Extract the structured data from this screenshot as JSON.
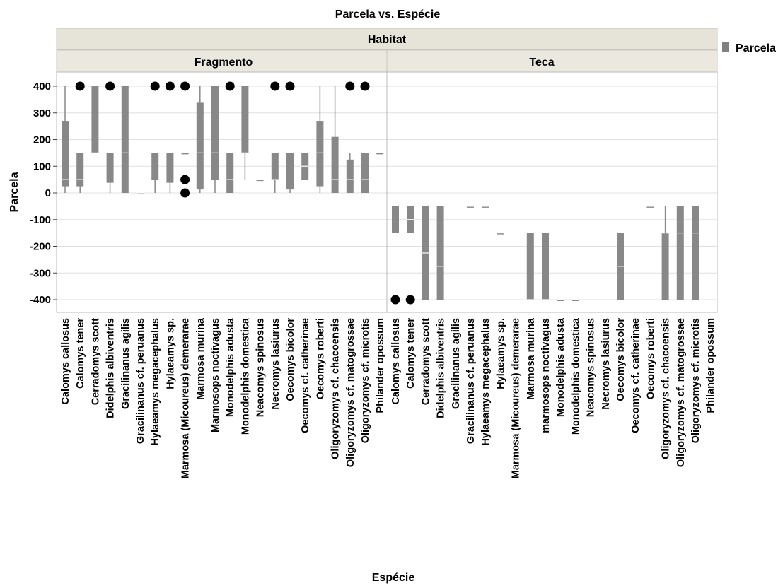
{
  "chart_data": {
    "type": "box",
    "title": "Parcela vs. Espécie",
    "xlabel": "Espécie",
    "ylabel": "Parcela",
    "ylim": [
      -450,
      450
    ],
    "yticks": [
      400,
      300,
      200,
      100,
      0,
      -100,
      -200,
      -300,
      -400
    ],
    "facet_title": "Habitat",
    "legend": {
      "label": "Parcela",
      "position": "top-right",
      "color": "#808080"
    },
    "colors": {
      "box": "#888888",
      "median": "#ffffff",
      "outlier": "#000000",
      "header": "#e6e4d8",
      "grid": "#e0e0e0"
    },
    "panels": [
      {
        "name": "Fragmento",
        "categories": [
          "Calomys callosus",
          "Calomys tener",
          "Cerradomys scott",
          "Didelphis albiventris",
          "Gracilinanus agilis",
          "Gracilinanus cf. peruanus",
          "Hylaeamys megacephalus",
          "Hylaeamys sp.",
          "Marmosa (Micoureus) demerarae",
          "Marmosa murina",
          "Marmosops noctivagus",
          "Monodelphis adusta",
          "Monodelphis domestica",
          "Neacomys spinosus",
          "Necromys lasiurus",
          "Oecomys bicolor",
          "Oecomys cf. catherinae",
          "Oecomys roberti",
          "Oligoryzomys cf. chacoensis",
          "Oligoryzomys cf. matogrossae",
          "Oligoryzomys cf. microtis",
          "Philander opossum"
        ],
        "boxes": [
          {
            "min": 0,
            "q1": 25,
            "median": 50,
            "q3": 270,
            "max": 400,
            "outliers": []
          },
          {
            "min": 0,
            "q1": 25,
            "median": 50,
            "q3": 150,
            "max": 150,
            "outliers": [
              400
            ]
          },
          {
            "min": 150,
            "q1": 150,
            "median": 150,
            "q3": 400,
            "max": 400,
            "outliers": []
          },
          {
            "min": 0,
            "q1": 38,
            "median": 150,
            "q3": 150,
            "max": 150,
            "outliers": [
              400
            ]
          },
          {
            "min": 0,
            "q1": 0,
            "median": 150,
            "q3": 400,
            "max": 400,
            "outliers": []
          },
          {
            "min": 0,
            "q1": 0,
            "median": 0,
            "q3": 0,
            "max": 0,
            "outliers": []
          },
          {
            "min": 0,
            "q1": 50,
            "median": 150,
            "q3": 150,
            "max": 150,
            "outliers": [
              400
            ]
          },
          {
            "min": 0,
            "q1": 38,
            "median": 150,
            "q3": 150,
            "max": 150,
            "outliers": [
              400
            ]
          },
          {
            "min": 150,
            "q1": 150,
            "median": 150,
            "q3": 150,
            "max": 150,
            "outliers": [
              400,
              50,
              0
            ]
          },
          {
            "min": 0,
            "q1": 13,
            "median": 150,
            "q3": 338,
            "max": 400,
            "outliers": []
          },
          {
            "min": 0,
            "q1": 50,
            "median": 150,
            "q3": 400,
            "max": 400,
            "outliers": []
          },
          {
            "min": 0,
            "q1": 0,
            "median": 50,
            "q3": 150,
            "max": 150,
            "outliers": [
              400
            ]
          },
          {
            "min": 50,
            "q1": 150,
            "median": 150,
            "q3": 400,
            "max": 400,
            "outliers": []
          },
          {
            "min": 50,
            "q1": 50,
            "median": 50,
            "q3": 50,
            "max": 50,
            "outliers": []
          },
          {
            "min": 0,
            "q1": 50,
            "median": 50,
            "q3": 150,
            "max": 150,
            "outliers": [
              400
            ]
          },
          {
            "min": 0,
            "q1": 13,
            "median": 150,
            "q3": 150,
            "max": 150,
            "outliers": [
              400
            ]
          },
          {
            "min": 50,
            "q1": 50,
            "median": 100,
            "q3": 150,
            "max": 150,
            "outliers": []
          },
          {
            "min": 0,
            "q1": 25,
            "median": 150,
            "q3": 270,
            "max": 400,
            "outliers": []
          },
          {
            "min": 0,
            "q1": 0,
            "median": 50,
            "q3": 210,
            "max": 400,
            "outliers": []
          },
          {
            "min": 0,
            "q1": 0,
            "median": 50,
            "q3": 125,
            "max": 150,
            "outliers": [
              400
            ]
          },
          {
            "min": 0,
            "q1": 0,
            "median": 50,
            "q3": 150,
            "max": 150,
            "outliers": [
              400
            ]
          },
          {
            "min": 150,
            "q1": 150,
            "median": 150,
            "q3": 150,
            "max": 150,
            "outliers": []
          }
        ]
      },
      {
        "name": "Teca",
        "categories": [
          "Calomys callosus",
          "Calomys tener",
          "Cerradomys scott",
          "Didelphis albiventris",
          "Gracilinanus agilis",
          "Gracilinanus cf. peruanus",
          "Hylaeamys megacephalus",
          "Hylaeamys sp.",
          "Marmosa (Micoureus) demerarae",
          "Marmosa murina",
          "marmosops noctivagus",
          "Monodelphis adusta",
          "Monodelphis domestica",
          "Neacomys spinosus",
          "Necromys lasiurus",
          "Oecomys bicolor",
          "Oecomys cf. catherinae",
          "Oecomys roberti",
          "Oligoryzomys cf. chacoensis",
          "Oligoryzomys cf. matogrossae",
          "Oligoryzomys cf. microtis",
          "Philander opossum"
        ],
        "boxes": [
          {
            "min": -150,
            "q1": -150,
            "median": -150,
            "q3": -50,
            "max": -50,
            "outliers": [
              -400
            ]
          },
          {
            "min": -150,
            "q1": -150,
            "median": -100,
            "q3": -50,
            "max": -50,
            "outliers": [
              -400
            ]
          },
          {
            "min": -400,
            "q1": -400,
            "median": -225,
            "q3": -50,
            "max": -50,
            "outliers": []
          },
          {
            "min": -400,
            "q1": -400,
            "median": -275,
            "q3": -50,
            "max": -50,
            "outliers": []
          },
          null,
          {
            "min": -50,
            "q1": -50,
            "median": -50,
            "q3": -50,
            "max": -50,
            "outliers": []
          },
          {
            "min": -50,
            "q1": -50,
            "median": -50,
            "q3": -50,
            "max": -50,
            "outliers": []
          },
          {
            "min": -150,
            "q1": -150,
            "median": -150,
            "q3": -150,
            "max": -150,
            "outliers": []
          },
          null,
          {
            "min": -400,
            "q1": -400,
            "median": -400,
            "q3": -150,
            "max": -150,
            "outliers": []
          },
          {
            "min": -400,
            "q1": -400,
            "median": -400,
            "q3": -150,
            "max": -150,
            "outliers": []
          },
          {
            "min": -400,
            "q1": -400,
            "median": -400,
            "q3": -400,
            "max": -400,
            "outliers": []
          },
          {
            "min": -400,
            "q1": -400,
            "median": -400,
            "q3": -400,
            "max": -400,
            "outliers": []
          },
          null,
          null,
          {
            "min": -400,
            "q1": -400,
            "median": -275,
            "q3": -150,
            "max": -150,
            "outliers": []
          },
          null,
          {
            "min": -50,
            "q1": -50,
            "median": -50,
            "q3": -50,
            "max": -50,
            "outliers": []
          },
          {
            "min": -400,
            "q1": -400,
            "median": -150,
            "q3": -150,
            "max": -50,
            "outliers": []
          },
          {
            "min": -400,
            "q1": -400,
            "median": -150,
            "q3": -50,
            "max": -50,
            "outliers": []
          },
          {
            "min": -400,
            "q1": -400,
            "median": -150,
            "q3": -50,
            "max": -50,
            "outliers": []
          },
          null
        ]
      }
    ]
  }
}
